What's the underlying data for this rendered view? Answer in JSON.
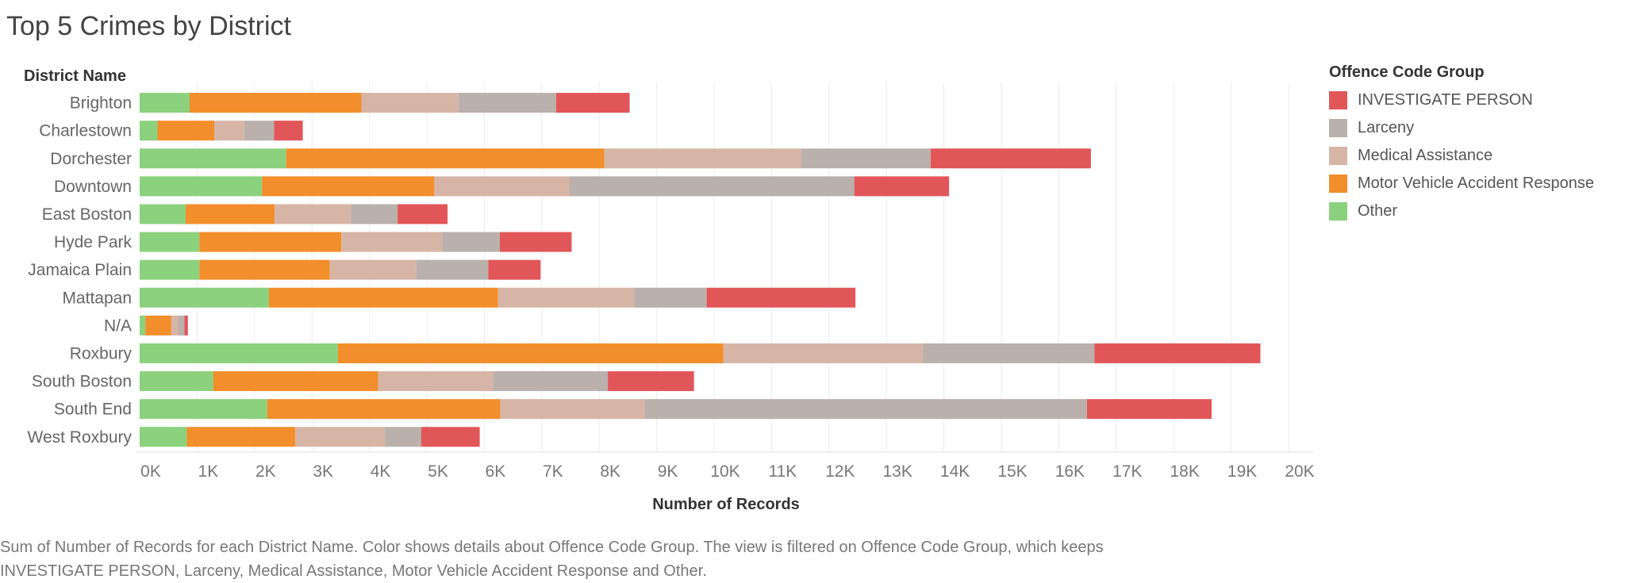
{
  "page": {
    "title": "Top 5 Crimes by District",
    "caption_line1": "Sum of Number of Records for each District Name.  Color shows details about Offence Code Group. The view is filtered on Offence Code Group, which keeps",
    "caption_line2": "INVESTIGATE PERSON, Larceny, Medical Assistance, Motor Vehicle Accident Response and Other."
  },
  "legend": {
    "title": "Offence Code Group",
    "items": [
      {
        "label": "INVESTIGATE PERSON",
        "color": "#e15759"
      },
      {
        "label": "Larceny",
        "color": "#bab0ac"
      },
      {
        "label": "Medical Assistance",
        "color": "#d7b5a6"
      },
      {
        "label": "Motor Vehicle Accident Response",
        "color": "#f28e2b"
      },
      {
        "label": "Other",
        "color": "#8cd17d"
      }
    ]
  },
  "chart_data": {
    "type": "bar",
    "orientation": "horizontal",
    "stacked": true,
    "title": "Top 5 Crimes by District",
    "xlabel": "Number of Records",
    "ylabel": "District Name",
    "xlim": [
      0,
      20000
    ],
    "x_ticks": [
      "0K",
      "1K",
      "2K",
      "3K",
      "4K",
      "5K",
      "6K",
      "7K",
      "8K",
      "9K",
      "10K",
      "11K",
      "12K",
      "13K",
      "14K",
      "15K",
      "16K",
      "17K",
      "18K",
      "19K",
      "20K"
    ],
    "grid": "vertical",
    "legend_position": "right",
    "categories": [
      "Brighton",
      "Charlestown",
      "Dorchester",
      "Downtown",
      "East Boston",
      "Hyde Park",
      "Jamaica Plain",
      "Mattapan",
      "N/A",
      "Roxbury",
      "South Boston",
      "South End",
      "West Roxbury"
    ],
    "series": [
      {
        "name": "Other",
        "color": "#8cd17d",
        "values": [
          870,
          310,
          2550,
          2130,
          800,
          1040,
          1040,
          2250,
          100,
          3450,
          1280,
          2220,
          820
        ]
      },
      {
        "name": "Motor Vehicle Accident Response",
        "color": "#f28e2b",
        "values": [
          2990,
          990,
          5540,
          3000,
          1550,
          2470,
          2270,
          3990,
          450,
          6710,
          2870,
          4060,
          1890
        ]
      },
      {
        "name": "Medical Assistance",
        "color": "#d7b5a6",
        "values": [
          1690,
          520,
          3430,
          2350,
          1330,
          1760,
          1510,
          2370,
          120,
          3480,
          2000,
          2510,
          1560
        ]
      },
      {
        "name": "Larceny",
        "color": "#bab0ac",
        "values": [
          1700,
          520,
          2250,
          4960,
          810,
          1000,
          1250,
          1260,
          110,
          2980,
          2000,
          7700,
          630
        ]
      },
      {
        "name": "INVESTIGATE PERSON",
        "color": "#e15759",
        "values": [
          1280,
          500,
          2790,
          1650,
          870,
          1250,
          910,
          2590,
          60,
          2890,
          1500,
          2170,
          1020
        ]
      }
    ]
  }
}
